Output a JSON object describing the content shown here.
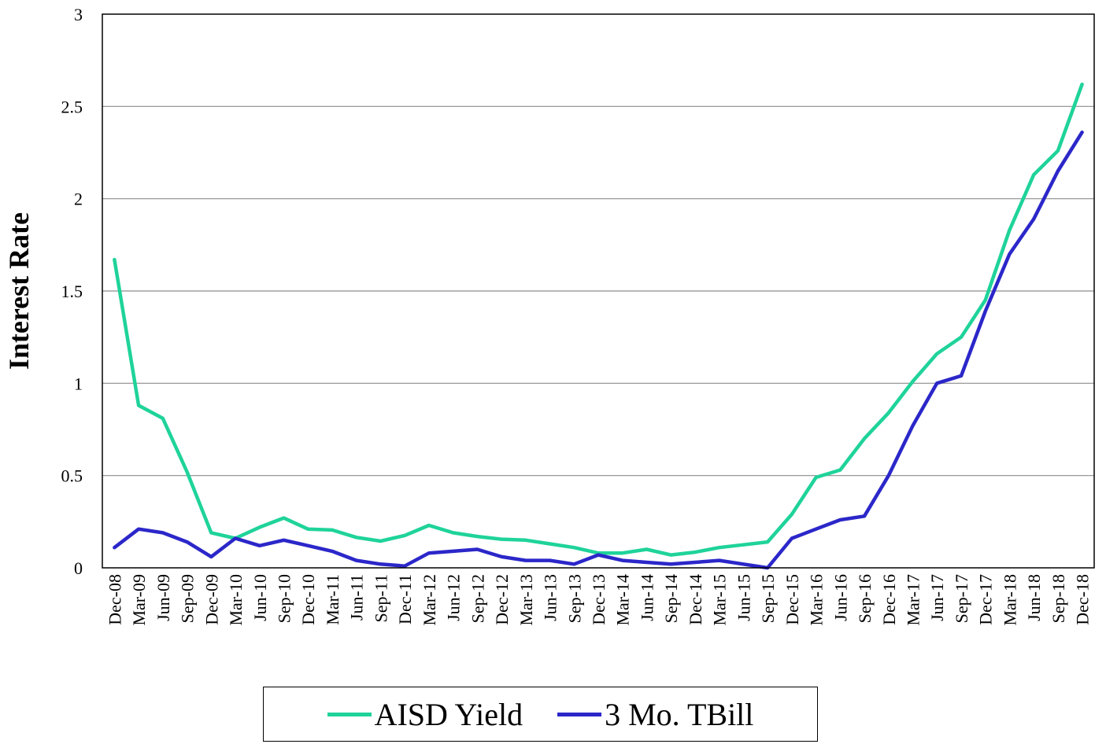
{
  "chart_data": {
    "type": "line",
    "title": "",
    "xlabel": "",
    "ylabel": "Interest Rate",
    "ylim": [
      0,
      3
    ],
    "yticks": [
      "0",
      "0.5",
      "1",
      "1.5",
      "2",
      "2.5",
      "3"
    ],
    "grid": true,
    "legend_position": "bottom",
    "categories": [
      "Dec-08",
      "Mar-09",
      "Jun-09",
      "Sep-09",
      "Dec-09",
      "Mar-10",
      "Jun-10",
      "Sep-10",
      "Dec-10",
      "Mar-11",
      "Jun-11",
      "Sep-11",
      "Dec-11",
      "Mar-12",
      "Jun-12",
      "Sep-12",
      "Dec-12",
      "Mar-13",
      "Jun-13",
      "Sep-13",
      "Dec-13",
      "Mar-14",
      "Jun-14",
      "Sep-14",
      "Dec-14",
      "Mar-15",
      "Jun-15",
      "Sep-15",
      "Dec-15",
      "Mar-16",
      "Jun-16",
      "Sep-16",
      "Dec-16",
      "Mar-17",
      "Jun-17",
      "Sep-17",
      "Dec-17",
      "Mar-18",
      "Jun-18",
      "Sep-18",
      "Dec-18"
    ],
    "series": [
      {
        "name": "AISD Yield",
        "color": "#1fd39a",
        "values": [
          1.67,
          0.88,
          0.81,
          0.52,
          0.19,
          0.16,
          0.22,
          0.27,
          0.21,
          0.205,
          0.165,
          0.145,
          0.175,
          0.23,
          0.19,
          0.17,
          0.155,
          0.15,
          0.13,
          0.11,
          0.08,
          0.08,
          0.1,
          0.07,
          0.085,
          0.11,
          0.125,
          0.14,
          0.29,
          0.49,
          0.53,
          0.7,
          0.84,
          1.01,
          1.16,
          1.25,
          1.45,
          1.83,
          2.13,
          2.26,
          2.62
        ]
      },
      {
        "name": "3 Mo. TBill",
        "color": "#2b27c9",
        "values": [
          0.11,
          0.21,
          0.19,
          0.14,
          0.06,
          0.16,
          0.12,
          0.15,
          0.12,
          0.09,
          0.04,
          0.02,
          0.01,
          0.08,
          0.09,
          0.1,
          0.06,
          0.04,
          0.04,
          0.02,
          0.07,
          0.04,
          0.03,
          0.02,
          0.03,
          0.04,
          0.02,
          0.0,
          0.16,
          0.21,
          0.26,
          0.28,
          0.5,
          0.77,
          1.0,
          1.04,
          1.39,
          1.7,
          1.89,
          2.15,
          2.36
        ]
      }
    ]
  }
}
